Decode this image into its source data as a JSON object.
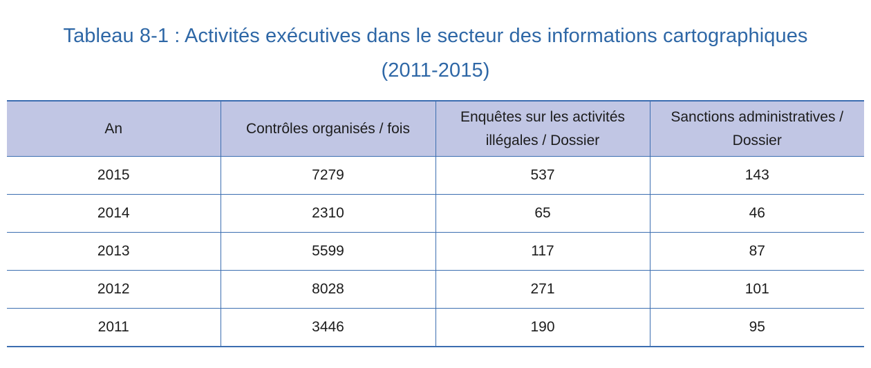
{
  "title_line1": "Tableau 8-1 : Activités exécutives dans le secteur des informations cartographiques",
  "title_line2": "(2011-2015)",
  "colors": {
    "title": "#2e67a6",
    "rule": "#3b6db0",
    "header_bg": "#c1c6e4"
  },
  "table": {
    "headers": [
      "An",
      "Contrôles organisés / fois",
      "Enquêtes sur les activités illégales / Dossier",
      "Sanctions administratives / Dossier"
    ],
    "rows": [
      [
        "2015",
        "7279",
        "537",
        "143"
      ],
      [
        "2014",
        "2310",
        "65",
        "46"
      ],
      [
        "2013",
        "5599",
        "117",
        "87"
      ],
      [
        "2012",
        "8028",
        "271",
        "101"
      ],
      [
        "2011",
        "3446",
        "190",
        "95"
      ]
    ]
  }
}
